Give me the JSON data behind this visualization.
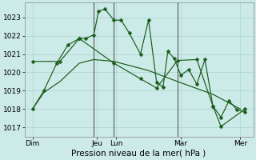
{
  "background_color": "#cceae7",
  "grid_color": "#b0d8d4",
  "line_color": "#1a5c1a",
  "xlabel": "Pression niveau de la mer( hPa )",
  "ylim": [
    1016.5,
    1023.8
  ],
  "yticks": [
    1017,
    1018,
    1019,
    1020,
    1021,
    1022,
    1023
  ],
  "xlim": [
    -0.2,
    14.0
  ],
  "xtick_labels": [
    "Dim",
    "Jeu",
    "Lun",
    "Mar",
    "Mer"
  ],
  "xtick_positions": [
    0.3,
    4.3,
    5.5,
    9.5,
    13.2
  ],
  "vlines": [
    4.1,
    5.35,
    9.3
  ],
  "series1_x": [
    0.3,
    1.0,
    2.0,
    3.2,
    4.1,
    5.35,
    7.5,
    9.3,
    11.5,
    13.2
  ],
  "series1_y": [
    1018.0,
    1018.9,
    1019.5,
    1020.5,
    1020.7,
    1020.6,
    1020.1,
    1019.5,
    1018.8,
    1018.0
  ],
  "series2_x": [
    0.3,
    1.0,
    1.8,
    2.5,
    3.2,
    3.6,
    4.1,
    4.4,
    4.8,
    5.35,
    5.8,
    6.3,
    7.0,
    7.5,
    8.0,
    8.4,
    8.7,
    9.1,
    9.5,
    10.0,
    10.5,
    11.0,
    11.5,
    12.0,
    12.5,
    13.0,
    13.5
  ],
  "series2_y": [
    1018.0,
    1019.0,
    1020.5,
    1021.5,
    1021.85,
    1021.85,
    1022.05,
    1023.35,
    1023.45,
    1022.85,
    1022.85,
    1022.15,
    1021.0,
    1022.85,
    1019.45,
    1019.2,
    1021.15,
    1020.75,
    1019.85,
    1020.15,
    1019.35,
    1020.7,
    1018.15,
    1017.55,
    1018.45,
    1017.95,
    1017.85
  ],
  "series3_x": [
    0.3,
    2.0,
    3.2,
    5.35,
    7.0,
    8.0,
    9.3,
    10.5,
    11.5,
    12.0,
    13.5
  ],
  "series3_y": [
    1020.6,
    1020.6,
    1021.85,
    1020.5,
    1019.65,
    1019.15,
    1020.65,
    1020.7,
    1018.15,
    1017.05,
    1018.0
  ]
}
